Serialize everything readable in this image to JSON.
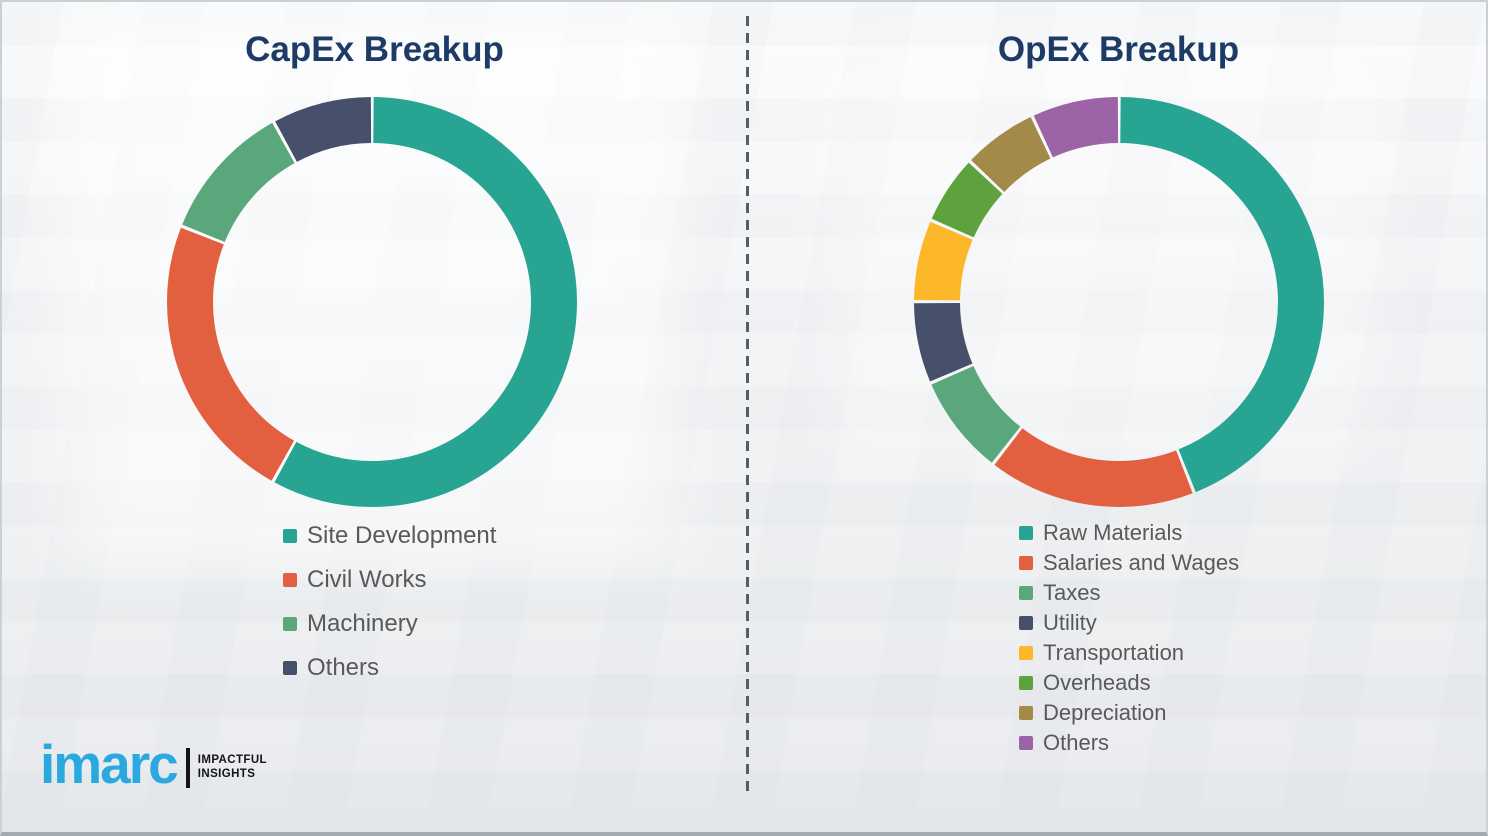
{
  "colors": {
    "title_text": "#1e3a66",
    "legend_text": "#595959",
    "divider": "#585d61",
    "background": "#f3f4f6",
    "segment_gap": "#ffffff",
    "logo_brand": "#2aa9e1",
    "logo_tagline": "#141414"
  },
  "chart_data": [
    {
      "type": "pie",
      "subtype": "donut",
      "title": "CapEx Breakup",
      "unit": "percent",
      "legend_position": "below-left",
      "segments": [
        {
          "label": "Site Development",
          "value": 58,
          "color": "#27a492"
        },
        {
          "label": "Civil Works",
          "value": 23,
          "color": "#e2603f"
        },
        {
          "label": "Machinery",
          "value": 11,
          "color": "#5aa77c"
        },
        {
          "label": "Others",
          "value": 8,
          "color": "#47506b"
        }
      ]
    },
    {
      "type": "pie",
      "subtype": "donut",
      "title": "OpEx Breakup",
      "unit": "percent",
      "legend_position": "below-left",
      "segments": [
        {
          "label": "Raw Materials",
          "value": 44,
          "color": "#27a492"
        },
        {
          "label": "Salaries and Wages",
          "value": 16.5,
          "color": "#e2603f"
        },
        {
          "label": "Taxes",
          "value": 8,
          "color": "#5aa77c"
        },
        {
          "label": "Utility",
          "value": 6.5,
          "color": "#47506b"
        },
        {
          "label": "Transportation",
          "value": 6.5,
          "color": "#fcb82a"
        },
        {
          "label": "Overheads",
          "value": 5.5,
          "color": "#5da23d"
        },
        {
          "label": "Depreciation",
          "value": 6,
          "color": "#a38a49"
        },
        {
          "label": "Others",
          "value": 7,
          "color": "#9c63a6"
        }
      ]
    }
  ],
  "logo": {
    "brand": "imarc",
    "tagline": [
      "IMPACTFUL",
      "INSIGHTS"
    ]
  }
}
